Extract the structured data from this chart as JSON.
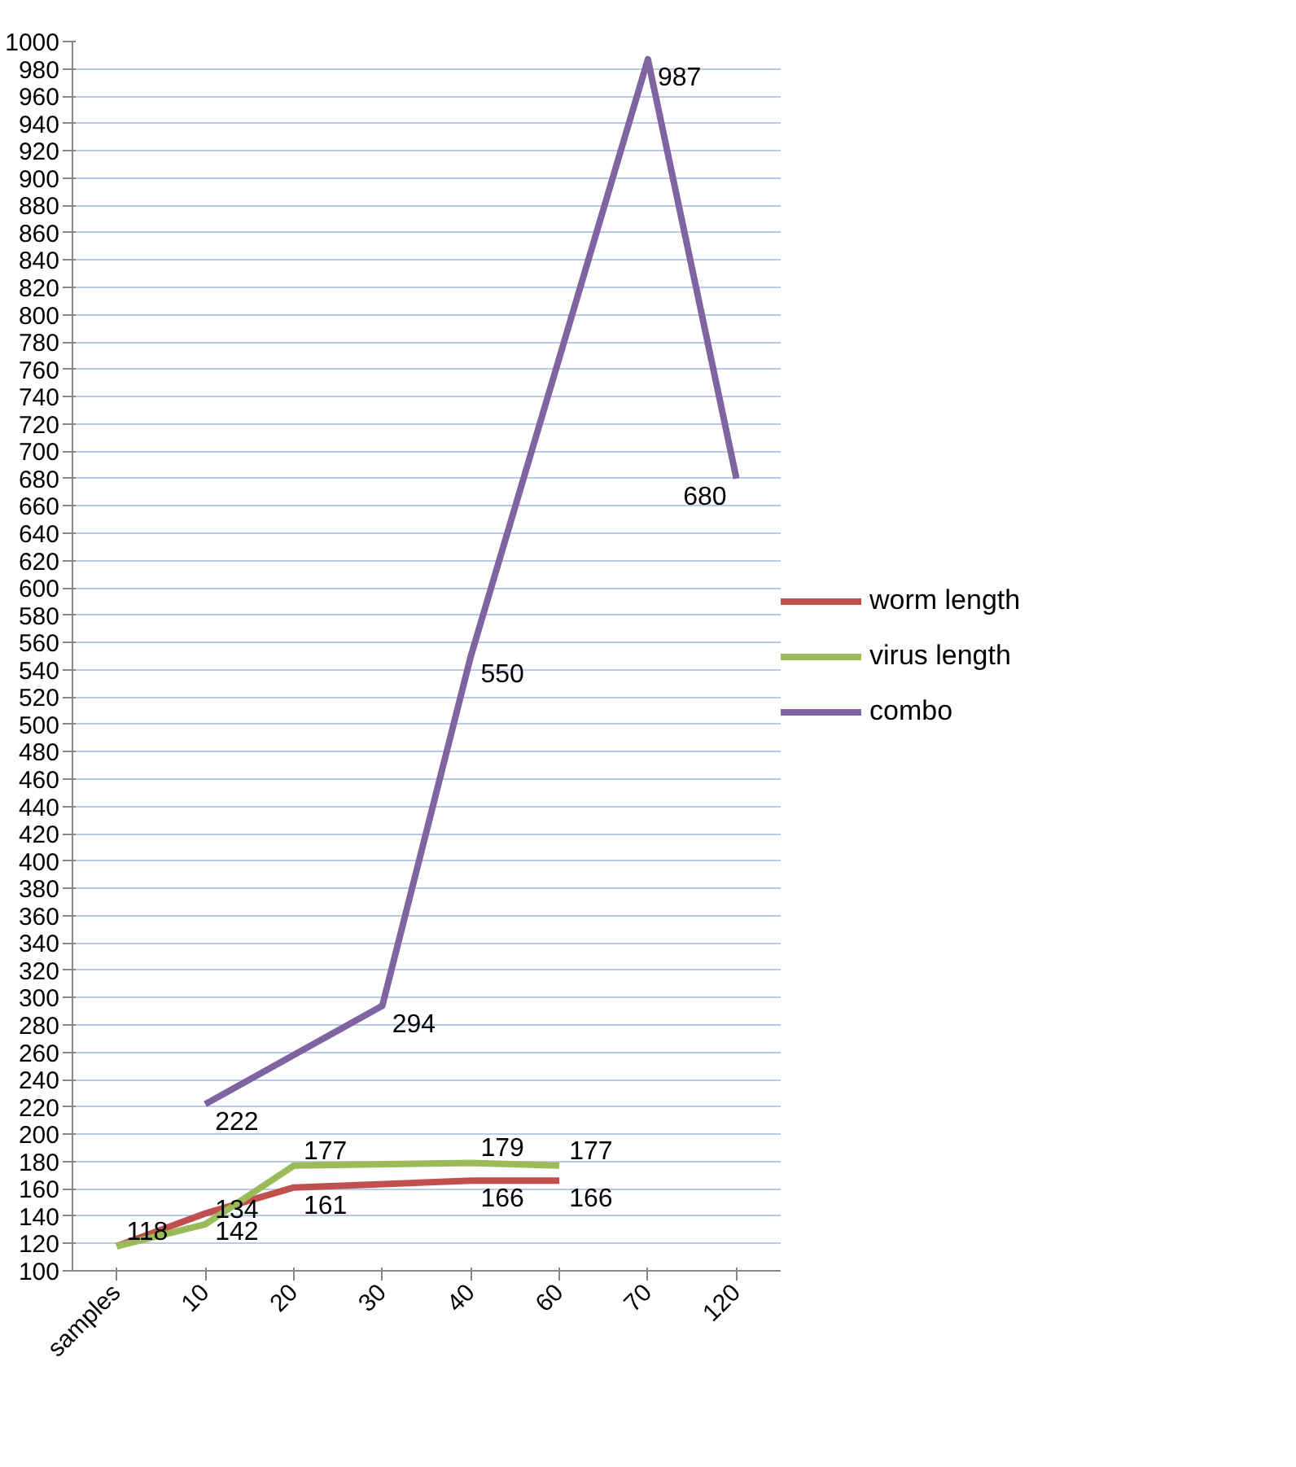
{
  "chart_data": {
    "type": "line",
    "categories": [
      "samples",
      "10",
      "20",
      "30",
      "40",
      "60",
      "70",
      "120"
    ],
    "series": [
      {
        "name": "worm length",
        "color": "#c0504d",
        "values": [
          118,
          142,
          161,
          null,
          166,
          166,
          null,
          null
        ],
        "value_labels": [
          null,
          "142",
          "161",
          null,
          "166",
          "166",
          null,
          null
        ]
      },
      {
        "name": "virus length",
        "color": "#9bbb59",
        "values": [
          118,
          134,
          177,
          null,
          179,
          177,
          null,
          null
        ],
        "value_labels": [
          "118",
          "134",
          "177",
          null,
          "179",
          "177",
          null,
          null
        ]
      },
      {
        "name": "combo",
        "color": "#8064a2",
        "values": [
          null,
          222,
          null,
          294,
          550,
          null,
          987,
          680
        ],
        "value_labels": [
          null,
          "222",
          null,
          "294",
          "550",
          null,
          "987",
          "680"
        ]
      }
    ],
    "ylim": [
      100,
      1000
    ],
    "yticks": [
      100,
      120,
      140,
      160,
      180,
      200,
      220,
      240,
      260,
      280,
      300,
      320,
      340,
      360,
      380,
      400,
      420,
      440,
      460,
      480,
      500,
      520,
      540,
      560,
      580,
      600,
      620,
      640,
      660,
      680,
      700,
      720,
      740,
      760,
      780,
      800,
      820,
      840,
      860,
      880,
      900,
      920,
      940,
      960,
      980,
      1000
    ],
    "grid": "y",
    "legend": "right",
    "marker": "none",
    "line_style": "solid"
  }
}
